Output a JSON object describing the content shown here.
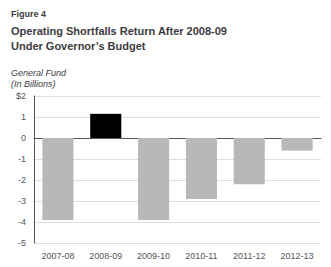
{
  "chart_data": {
    "type": "bar",
    "figure_label": "Figure 4",
    "title": "Operating Shortfalls Return After 2008-09\nUnder Governor’s Budget",
    "ylabel": "General Fund\n(In Billions)",
    "categories": [
      "2007-08",
      "2008-09",
      "2009-10",
      "2010-11",
      "2011-12",
      "2012-13"
    ],
    "values": [
      -3.9,
      1.15,
      -3.9,
      -2.9,
      -2.2,
      -0.6
    ],
    "colors": [
      "#b8b8b8",
      "#000000",
      "#b8b8b8",
      "#b8b8b8",
      "#b8b8b8",
      "#b8b8b8"
    ],
    "ylim": [
      -5,
      2
    ],
    "yticks": [
      -5,
      -4,
      -3,
      -2,
      -1,
      0,
      1,
      {
        "value": 2,
        "label": "$2"
      }
    ],
    "grid": true
  }
}
